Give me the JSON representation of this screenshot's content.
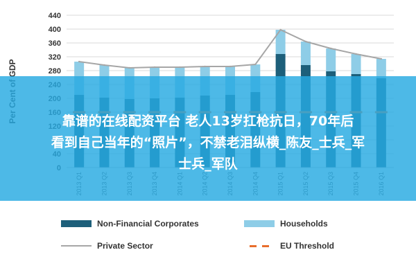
{
  "chart_data": {
    "type": "bar",
    "ylabel": "Per Cent of GDP",
    "ylim": [
      0,
      440
    ],
    "yticks": [
      0,
      40,
      80,
      120,
      160,
      200,
      240,
      280,
      320,
      360,
      400,
      440
    ],
    "categories": [
      "2013 Q1",
      "2013 Q2",
      "2013 Q3",
      "2013 Q4",
      "2014 Q1",
      "2014 Q2",
      "2014 Q3",
      "2014 Q4",
      "2015 Q1",
      "2015 Q2",
      "2015 Q3",
      "2015 Q4",
      "2016 Q1"
    ],
    "series": [
      {
        "name": "Non-Financial Corporates",
        "color": "#1d5f7a",
        "values": [
          210,
          202,
          198,
          200,
          202,
          208,
          210,
          218,
          328,
          296,
          278,
          270,
          258
        ]
      },
      {
        "name": "Households",
        "color": "#8ecde7",
        "values": [
          96,
          94,
          90,
          90,
          88,
          84,
          82,
          80,
          70,
          68,
          66,
          58,
          56
        ]
      },
      {
        "name": "Private Sector",
        "color": "#a6a6a6",
        "type": "line",
        "values": [
          306,
          296,
          288,
          290,
          290,
          292,
          292,
          298,
          398,
          364,
          344,
          328,
          314
        ]
      },
      {
        "name": "EU Threshold",
        "color": "#e86d2c",
        "type": "dash",
        "value": 160
      }
    ],
    "grid": true,
    "legend_position": "bottom"
  },
  "overlay": {
    "line1": "靠谱的在线配资平台 老人13岁扛枪抗日，70年后",
    "line2": "看到自己当年的“照片”，不禁老泪纵横_陈友_士兵_军",
    "line3": "士兵_军队"
  },
  "legend": {
    "nfc": "Non-Financial Corporates",
    "households": "Households",
    "private": "Private Sector",
    "eu": "EU Threshold"
  }
}
